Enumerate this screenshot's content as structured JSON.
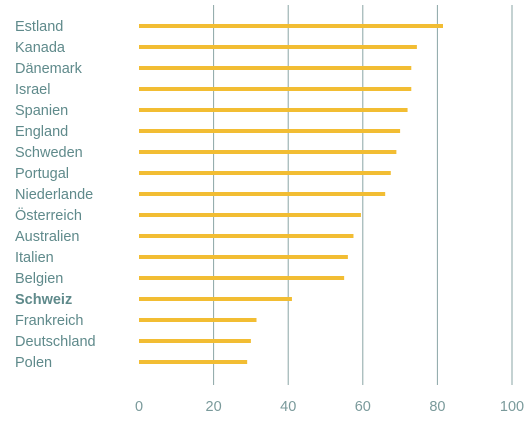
{
  "chart_data": {
    "type": "bar",
    "orientation": "horizontal",
    "categories": [
      "Estland",
      "Kanada",
      "Dänemark",
      "Israel",
      "Spanien",
      "England",
      "Schweden",
      "Portugal",
      "Niederlande",
      "Österreich",
      "Australien",
      "Italien",
      "Belgien",
      "Schweiz",
      "Frankreich",
      "Deutschland",
      "Polen"
    ],
    "values": [
      81.5,
      74.5,
      73,
      73,
      72,
      70,
      69,
      67.5,
      66,
      59.5,
      57.5,
      56,
      55,
      41,
      31.5,
      30,
      29
    ],
    "highlight_category": "Schweiz",
    "x_ticks": [
      "0",
      "20",
      "40",
      "60",
      "80",
      "100"
    ],
    "xlim": [
      0,
      100
    ],
    "grid": "vertical",
    "colors": {
      "bar": "#f2bd33",
      "label": "#5f8a8b",
      "tick": "#7a9a9b",
      "grid": "#8aa5a6"
    }
  }
}
